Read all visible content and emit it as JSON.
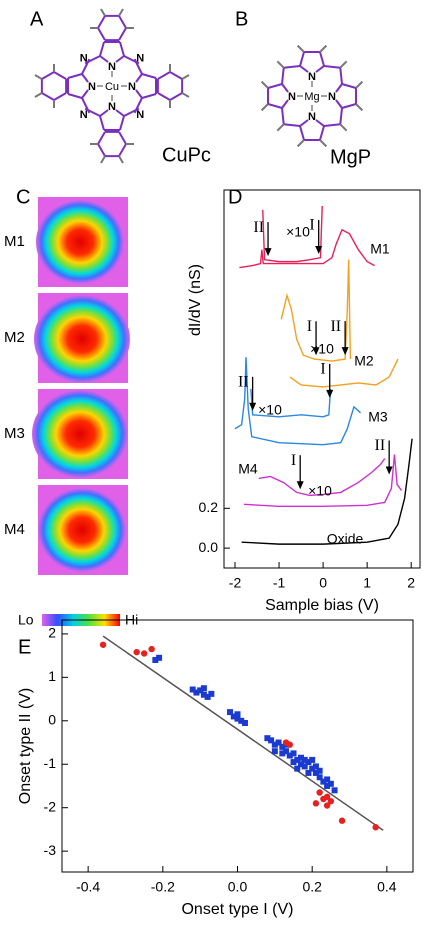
{
  "panels": {
    "a": {
      "label": "A",
      "molecule": "CuPc",
      "metal": "Cu",
      "atom": "N"
    },
    "b": {
      "label": "B",
      "molecule": "MgP",
      "metal": "Mg",
      "atom": "N"
    },
    "c": {
      "label": "C",
      "images": [
        "M1",
        "M2",
        "M3",
        "M4"
      ],
      "scale_low": "Lo",
      "scale_high": "Hi"
    },
    "d": {
      "label": "D"
    },
    "e": {
      "label": "E"
    }
  },
  "chart_data": [
    {
      "type": "line",
      "xlabel": "Sample bias (V)",
      "ylabel": "dI/dV (nS)",
      "xlim": [
        -2.25,
        2.2
      ],
      "ylim": [
        -0.1,
        1.8
      ],
      "xticks": [
        -2,
        -1,
        0,
        1,
        2
      ],
      "yticks": [
        {
          "value": 0,
          "label": "0.0"
        },
        {
          "value": 0.2,
          "label": "0.2"
        }
      ],
      "series": [
        {
          "name": "M1",
          "color": "#e8205a",
          "x": [
            -1.9,
            -1.6,
            -1.42,
            -1.39,
            -1.36,
            -1.0,
            -0.5,
            0.0,
            0.2,
            0.3,
            0.43,
            0.6,
            0.8,
            1.0,
            1.17
          ],
          "values": [
            1.41,
            1.42,
            1.43,
            1.5,
            1.43,
            1.43,
            1.43,
            1.43,
            1.46,
            1.53,
            1.6,
            1.58,
            1.5,
            1.44,
            1.42
          ]
        },
        {
          "name": "×10",
          "color": "#e8205a",
          "x": [
            -1.37,
            -1.33,
            -1.0,
            -0.6,
            -0.3,
            -0.06,
            -0.02
          ],
          "values": [
            1.7,
            1.45,
            1.44,
            1.44,
            1.45,
            1.46,
            1.72
          ],
          "onsets": [
            {
              "label": "II",
              "x": -1.25
            },
            {
              "label": "I",
              "x": -0.1
            }
          ]
        },
        {
          "name": "M2",
          "color": "#f5a020",
          "x": [
            -0.75,
            -0.5,
            0.0,
            0.4,
            0.8,
            1.2,
            1.5,
            1.7
          ],
          "values": [
            0.86,
            0.82,
            0.81,
            0.82,
            0.83,
            0.82,
            0.86,
            0.95
          ]
        },
        {
          "name": "×10",
          "color": "#f5a020",
          "x": [
            -0.95,
            -0.82,
            -0.72,
            -0.6,
            -0.45,
            -0.2,
            0.2,
            0.5,
            0.55,
            0.58,
            0.62
          ],
          "values": [
            1.15,
            1.27,
            1.2,
            1.05,
            0.97,
            0.95,
            0.94,
            0.95,
            1.2,
            1.45,
            0.95
          ],
          "onsets": [
            {
              "label": "I",
              "x": -0.16
            },
            {
              "label": "II",
              "x": 0.5
            }
          ]
        },
        {
          "name": "M3",
          "color": "#2a88e0",
          "x": [
            -2.0,
            -1.85,
            -1.78,
            -1.75,
            -1.7,
            -1.62,
            -1.0,
            0.0,
            0.4,
            0.55,
            0.7,
            0.85
          ],
          "values": [
            0.6,
            0.62,
            0.75,
            0.96,
            0.7,
            0.56,
            0.53,
            0.52,
            0.53,
            0.6,
            0.71,
            0.68
          ]
        },
        {
          "name": "×10",
          "color": "#2a88e0",
          "x": [
            -1.64,
            -1.6,
            -1.0,
            -0.5,
            0.0,
            0.13,
            0.17
          ],
          "values": [
            0.8,
            0.67,
            0.66,
            0.67,
            0.66,
            0.67,
            0.8
          ],
          "onsets": [
            {
              "label": "II",
              "x": -1.6
            },
            {
              "label": "I",
              "x": 0.15
            }
          ]
        },
        {
          "name": "M4",
          "color": "#d030d0",
          "x": [
            -1.8,
            -1.0,
            0.0,
            1.0,
            1.4,
            1.55,
            1.62,
            1.68,
            1.78
          ],
          "values": [
            0.22,
            0.21,
            0.21,
            0.215,
            0.23,
            0.3,
            0.47,
            0.32,
            0.29
          ]
        },
        {
          "name": "×10",
          "color": "#d030d0",
          "x": [
            -1.46,
            -1.2,
            -0.9,
            -0.6,
            -0.3,
            0.0,
            0.4,
            0.8,
            1.1,
            1.3,
            1.4
          ],
          "values": [
            0.35,
            0.36,
            0.33,
            0.28,
            0.265,
            0.27,
            0.28,
            0.33,
            0.38,
            0.42,
            0.45
          ],
          "onsets": [
            {
              "label": "I",
              "x": -0.52
            },
            {
              "label": "II",
              "x": 1.5
            }
          ]
        },
        {
          "name": "Oxide",
          "color": "#000000",
          "x": [
            -1.85,
            -1.0,
            0.0,
            1.0,
            1.5,
            1.7,
            1.85,
            1.95,
            2.02
          ],
          "values": [
            0.03,
            0.02,
            0.02,
            0.03,
            0.05,
            0.12,
            0.25,
            0.42,
            0.55
          ]
        }
      ]
    },
    {
      "type": "scatter",
      "xlabel": "Onset type I (V)",
      "ylabel": "Onset type II (V)",
      "xlim": [
        -0.47,
        0.47
      ],
      "ylim": [
        -3.48,
        2.32
      ],
      "xticks": [
        -0.4,
        -0.2,
        {
          "value": 0,
          "label": "0.0"
        },
        0.2,
        0.4
      ],
      "yticks": [
        -3,
        -2,
        -1,
        0,
        1,
        2
      ],
      "series": [
        {
          "color": "#1a3ad0",
          "marker": "square",
          "x": [
            -0.22,
            -0.21,
            -0.12,
            -0.11,
            -0.1,
            -0.09,
            -0.08,
            -0.09,
            -0.07,
            -0.02,
            -0.01,
            0.0,
            0.0,
            0.01,
            0.02,
            0.08,
            0.09,
            0.1,
            0.11,
            0.12,
            0.12,
            0.13,
            0.14,
            0.15,
            0.15,
            0.16,
            0.17,
            0.17,
            0.18,
            0.18,
            0.19,
            0.19,
            0.2,
            0.21,
            0.21,
            0.22,
            0.23,
            0.24,
            0.24,
            0.25,
            0.26,
            0.1,
            0.13,
            0.16,
            0.2,
            0.22
          ],
          "values": [
            1.4,
            1.45,
            0.72,
            0.65,
            0.7,
            0.6,
            0.55,
            0.75,
            0.62,
            0.2,
            0.1,
            0.15,
            0.05,
            0.0,
            -0.05,
            -0.4,
            -0.45,
            -0.55,
            -0.5,
            -0.6,
            -0.75,
            -0.7,
            -0.8,
            -0.75,
            -0.95,
            -0.9,
            -0.85,
            -1.0,
            -0.9,
            -1.05,
            -0.95,
            -1.2,
            -1.1,
            -1.2,
            -1.05,
            -1.3,
            -1.4,
            -1.35,
            -1.5,
            -1.45,
            -1.6,
            -0.7,
            -0.55,
            -1.1,
            -0.9,
            -1.15
          ]
        },
        {
          "color": "#e82020",
          "marker": "circle",
          "x": [
            -0.36,
            -0.27,
            -0.25,
            -0.23,
            0.13,
            0.14,
            0.22,
            0.23,
            0.21,
            0.24,
            0.25,
            0.24,
            0.28,
            0.37
          ],
          "values": [
            1.75,
            1.58,
            1.55,
            1.65,
            -0.5,
            -0.55,
            -1.65,
            -1.8,
            -1.9,
            -1.75,
            -1.85,
            -1.95,
            -2.3,
            -2.45
          ]
        }
      ],
      "fit": {
        "color": "#555555",
        "x": [
          -0.36,
          0.39
        ],
        "values": [
          1.95,
          -2.52
        ]
      }
    }
  ]
}
